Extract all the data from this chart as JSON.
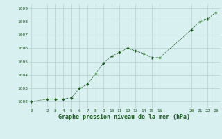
{
  "x": [
    0,
    2,
    3,
    4,
    5,
    6,
    7,
    8,
    9,
    10,
    11,
    12,
    13,
    14,
    15,
    16,
    20,
    21,
    22,
    23
  ],
  "y": [
    1002.0,
    1002.2,
    1002.2,
    1002.2,
    1002.3,
    1003.0,
    1003.3,
    1004.1,
    1004.9,
    1005.4,
    1005.7,
    1006.0,
    1005.8,
    1005.6,
    1005.3,
    1005.3,
    1007.4,
    1008.0,
    1008.2,
    1008.7
  ],
  "xlim": [
    -0.3,
    23.5
  ],
  "ylim": [
    1001.5,
    1009.3
  ],
  "yticks": [
    1002,
    1003,
    1004,
    1005,
    1006,
    1007,
    1008,
    1009
  ],
  "xticks": [
    0,
    2,
    3,
    4,
    5,
    6,
    7,
    8,
    9,
    10,
    11,
    12,
    13,
    14,
    15,
    16,
    20,
    21,
    22,
    23
  ],
  "xlabel": "Graphe pression niveau de la mer (hPa)",
  "line_color": "#1a5c1a",
  "marker_color": "#1a5c1a",
  "bg_color": "#d8f0f0",
  "grid_color": "#b8cece",
  "xlabel_color": "#1a5c1a",
  "tick_color": "#1a5c1a"
}
